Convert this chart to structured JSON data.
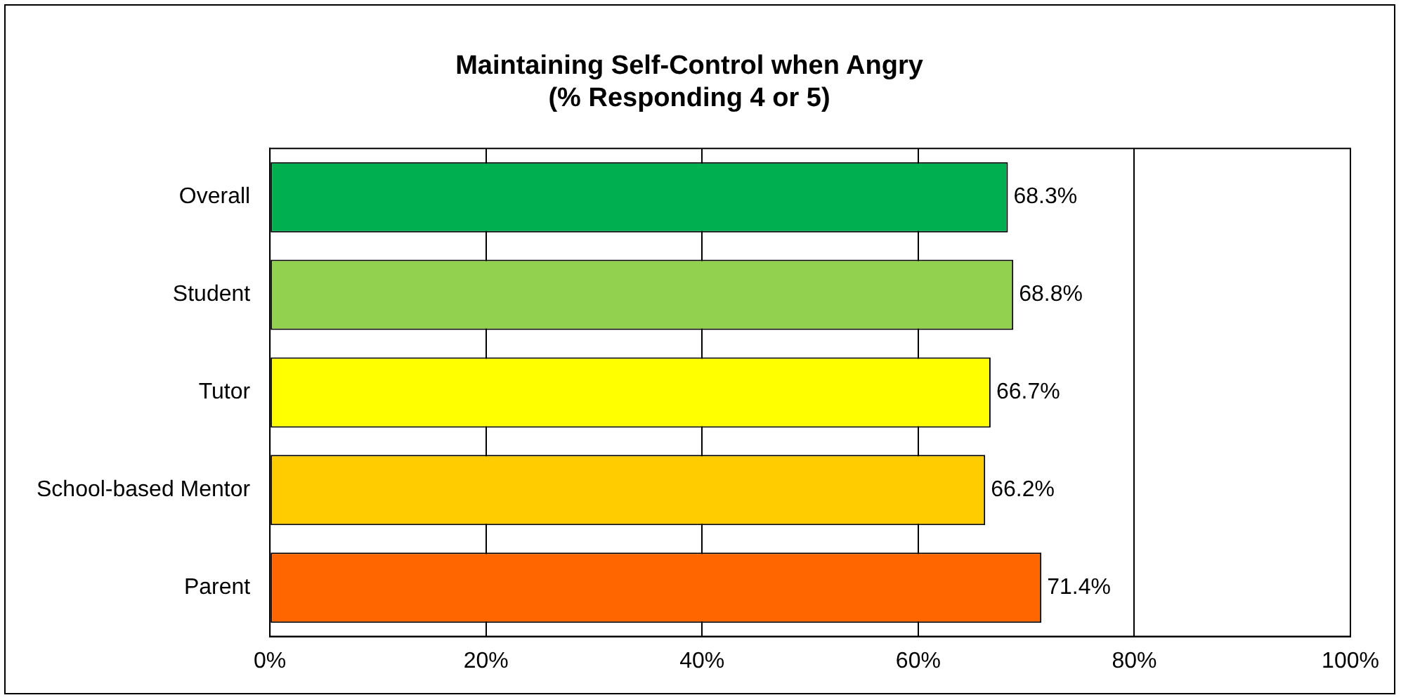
{
  "chart_data": {
    "type": "bar",
    "orientation": "horizontal",
    "title": "Maintaining Self-Control when Angry",
    "subtitle": "(% Responding 4 or 5)",
    "categories": [
      "Overall",
      "Student",
      "Tutor",
      "School-based Mentor",
      "Parent"
    ],
    "values": [
      68.3,
      68.8,
      66.7,
      66.2,
      71.4
    ],
    "colors": [
      "#00b050",
      "#92d050",
      "#ffff00",
      "#ffcc00",
      "#ff6600"
    ],
    "value_labels": [
      "68.3%",
      "68.8%",
      "66.7%",
      "66.2%",
      "71.4%"
    ],
    "xlim": [
      0,
      100
    ],
    "xticks": [
      {
        "value": 0,
        "label": "0%"
      },
      {
        "value": 20,
        "label": "20%"
      },
      {
        "value": 40,
        "label": "40%"
      },
      {
        "value": 60,
        "label": "60%"
      },
      {
        "value": 80,
        "label": "80%"
      },
      {
        "value": 100,
        "label": "100%"
      }
    ],
    "grid": "x",
    "legend": false
  }
}
